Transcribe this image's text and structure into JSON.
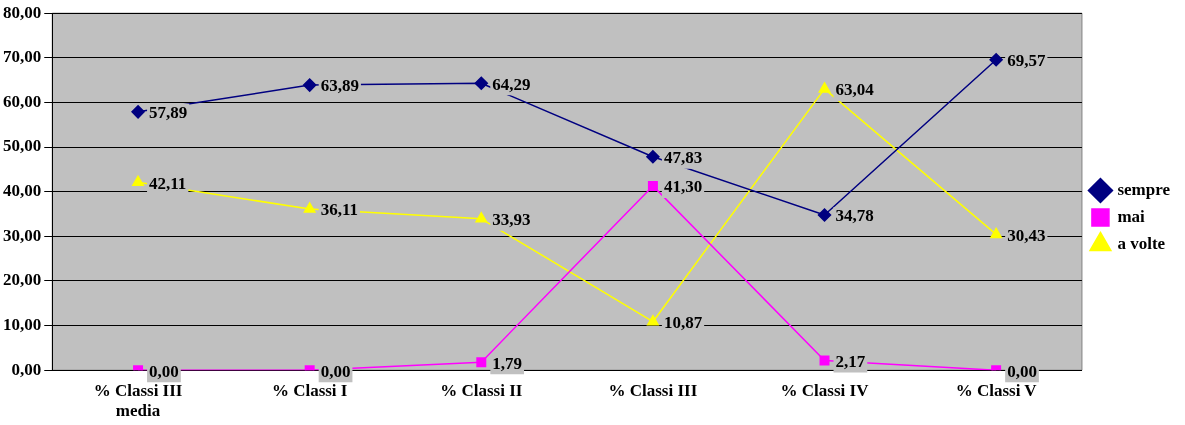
{
  "chart_data": {
    "type": "line",
    "categories": [
      "% Classi III media",
      "% Classi I",
      "% Classi II",
      "% Classi III",
      "% Classi IV",
      "% Classi V"
    ],
    "series": [
      {
        "name": "sempre",
        "color": "#000080",
        "marker": "diamond",
        "values": [
          57.89,
          63.89,
          64.29,
          47.83,
          34.78,
          69.57
        ],
        "value_labels": [
          "57,89",
          "63,89",
          "64,29",
          "47,83",
          "34,78",
          "69,57"
        ]
      },
      {
        "name": "mai",
        "color": "#ff00ff",
        "marker": "square",
        "values": [
          0,
          0,
          1.79,
          41.3,
          2.17,
          0
        ],
        "value_labels": [
          "0,00",
          "0,00",
          "1,79",
          "41,30",
          "2,17",
          "0,00"
        ]
      },
      {
        "name": "a volte",
        "color": "#ffff00",
        "marker": "triangle",
        "values": [
          42.11,
          36.11,
          33.93,
          10.87,
          63.04,
          30.43
        ],
        "value_labels": [
          "42,11",
          "36,11",
          "33,93",
          "10,87",
          "63,04",
          "30,43"
        ]
      }
    ],
    "ylim": [
      0,
      80
    ],
    "yticks": [
      {
        "value": 0,
        "label": "0,00"
      },
      {
        "value": 10,
        "label": "10,00"
      },
      {
        "value": 20,
        "label": "20,00"
      },
      {
        "value": 30,
        "label": "30,00"
      },
      {
        "value": 40,
        "label": "40,00"
      },
      {
        "value": 50,
        "label": "50,00"
      },
      {
        "value": 60,
        "label": "60,00"
      },
      {
        "value": 70,
        "label": "70,00"
      },
      {
        "value": 80,
        "label": "80,00"
      }
    ],
    "grid": "y",
    "legend": "right"
  }
}
